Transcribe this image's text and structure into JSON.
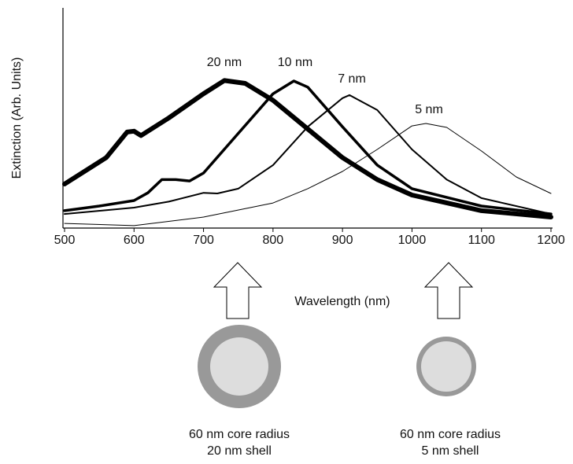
{
  "chart_data": {
    "type": "line",
    "x_label": "Wavelength (nm)",
    "y_label": "Extinction (Arb. Units)",
    "xlim": [
      500,
      1200
    ],
    "xticks": [
      500,
      600,
      700,
      800,
      900,
      1000,
      1100,
      1200
    ],
    "ylim": [
      0,
      100
    ],
    "series": [
      {
        "name": "20 nm",
        "color": "#000000",
        "line_width": 6,
        "x": [
          500,
          560,
          590,
          600,
          610,
          650,
          700,
          730,
          760,
          800,
          850,
          900,
          950,
          1000,
          1100,
          1200
        ],
        "values": [
          20,
          32,
          43.6,
          44,
          42,
          50,
          61,
          67,
          65.7,
          58,
          45,
          32,
          22,
          15,
          7.9,
          5
        ]
      },
      {
        "name": "10 nm",
        "color": "#000000",
        "line_width": 3.5,
        "x": [
          500,
          550,
          600,
          620,
          640,
          660,
          680,
          700,
          750,
          800,
          830,
          850,
          900,
          950,
          1000,
          1100,
          1200
        ],
        "values": [
          7.9,
          10,
          12.5,
          16,
          22,
          22,
          21.4,
          25,
          43,
          61,
          66.8,
          64,
          46,
          28.6,
          17.9,
          10,
          6.4
        ]
      },
      {
        "name": "7 nm",
        "color": "#000000",
        "line_width": 2,
        "x": [
          500,
          600,
          650,
          700,
          720,
          750,
          800,
          850,
          900,
          910,
          950,
          1000,
          1050,
          1100,
          1200
        ],
        "values": [
          6.4,
          9.3,
          12,
          16,
          15.7,
          17.9,
          28.6,
          46,
          59,
          60.4,
          53.6,
          35.7,
          22,
          13.6,
          6.4
        ]
      },
      {
        "name": "5 nm",
        "color": "#000000",
        "line_width": 1,
        "x": [
          500,
          600,
          700,
          800,
          850,
          900,
          950,
          1000,
          1020,
          1050,
          1100,
          1150,
          1200
        ],
        "values": [
          2.1,
          1.1,
          5,
          11.4,
          17.9,
          25.7,
          35.7,
          46.4,
          47.5,
          45.7,
          35,
          23.2,
          15.7
        ]
      }
    ],
    "annotations": [
      {
        "line1": "60 nm core radius",
        "line2": "20 nm shell"
      },
      {
        "line1": "60 nm core radius",
        "line2": "5 nm shell"
      }
    ]
  }
}
